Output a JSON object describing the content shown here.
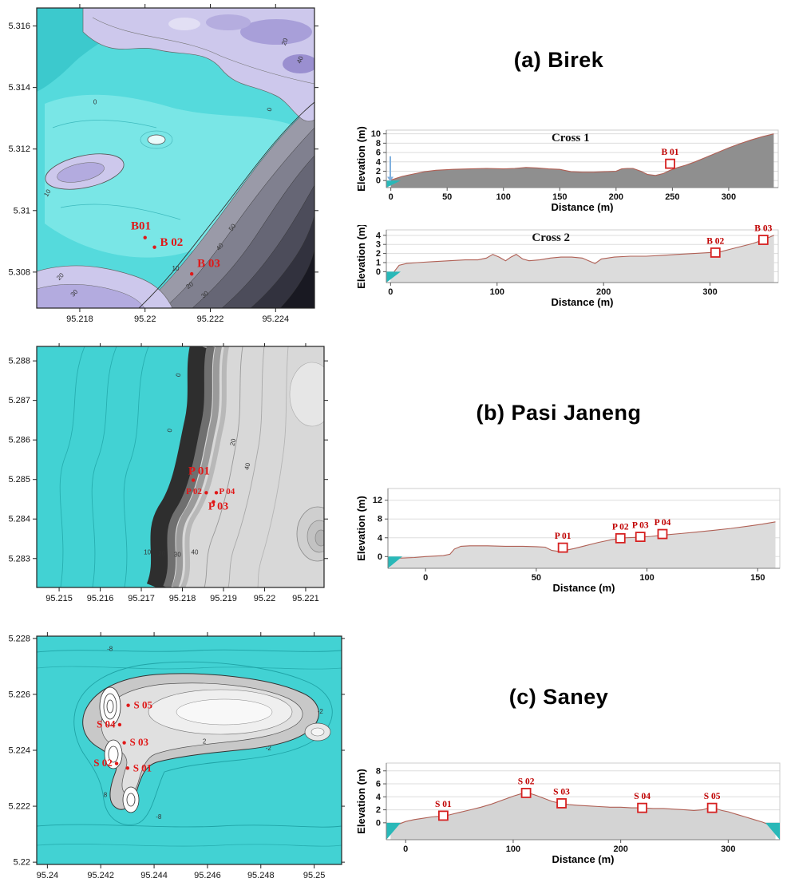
{
  "figure": {
    "panels": [
      {
        "id": "a",
        "title": "(a) Birek"
      },
      {
        "id": "b",
        "title": "(b) Pasi Janeng"
      },
      {
        "id": "c",
        "title": "(c) Saney"
      }
    ]
  },
  "maps": [
    {
      "id": "map-a",
      "y_ticks": [
        "5.316",
        "5.314",
        "5.312",
        "5.31",
        "5.308"
      ],
      "y_tick_f": [
        0.06,
        0.265,
        0.47,
        0.675,
        0.88
      ],
      "x_ticks": [
        "95.218",
        "95.22",
        "95.222",
        "95.224"
      ],
      "x_tick_f": [
        0.155,
        0.39,
        0.625,
        0.86
      ],
      "points": [
        {
          "label": "B01",
          "dot_f": [
            0.39,
            0.765
          ],
          "label_f": [
            0.375,
            0.738
          ],
          "size": 15,
          "anchor": "middle"
        },
        {
          "label": "B 02",
          "dot_f": [
            0.424,
            0.797
          ],
          "label_f": [
            0.444,
            0.792
          ],
          "size": 15,
          "anchor": "start"
        },
        {
          "label": "B 03",
          "dot_f": [
            0.558,
            0.886
          ],
          "label_f": [
            0.578,
            0.863
          ],
          "size": 15,
          "anchor": "start"
        }
      ],
      "contour_labels": [
        {
          "t": "0",
          "f": [
            0.21,
            0.32
          ]
        },
        {
          "t": "10",
          "f": [
            0.045,
            0.62
          ],
          "r": -60
        },
        {
          "t": "20",
          "f": [
            0.09,
            0.9
          ],
          "r": -45
        },
        {
          "t": "30",
          "f": [
            0.14,
            0.955
          ],
          "r": -45
        },
        {
          "t": "10",
          "f": [
            0.5,
            0.875
          ]
        },
        {
          "t": "20",
          "f": [
            0.555,
            0.93
          ],
          "r": -35
        },
        {
          "t": "30",
          "f": [
            0.61,
            0.96
          ],
          "r": -40
        },
        {
          "t": "40",
          "f": [
            0.665,
            0.8
          ],
          "r": -50
        },
        {
          "t": "50",
          "f": [
            0.71,
            0.735
          ],
          "r": -55
        },
        {
          "t": "0",
          "f": [
            0.845,
            0.34
          ],
          "r": -75
        },
        {
          "t": "20",
          "f": [
            0.9,
            0.115
          ],
          "r": -70
        },
        {
          "t": "40",
          "f": [
            0.955,
            0.175
          ],
          "r": -70
        }
      ]
    },
    {
      "id": "map-b",
      "y_ticks": [
        "5.288",
        "5.287",
        "5.286",
        "5.285",
        "5.284",
        "5.283"
      ],
      "y_tick_f": [
        0.06,
        0.224,
        0.388,
        0.552,
        0.716,
        0.88
      ],
      "x_ticks": [
        "95.215",
        "95.216",
        "95.217",
        "95.218",
        "95.219",
        "95.22",
        "95.221"
      ],
      "x_tick_f": [
        0.078,
        0.221,
        0.364,
        0.507,
        0.65,
        0.793,
        0.936
      ],
      "points": [
        {
          "label": "P 01",
          "dot_f": [
            0.545,
            0.555
          ],
          "label_f": [
            0.565,
            0.532
          ],
          "size": 15,
          "anchor": "middle"
        },
        {
          "label": "P 02",
          "dot_f": [
            0.59,
            0.607
          ],
          "label_f": [
            0.547,
            0.613
          ],
          "size": 11,
          "anchor": "middle"
        },
        {
          "label": "P 04",
          "dot_f": [
            0.625,
            0.607
          ],
          "label_f": [
            0.662,
            0.612
          ],
          "size": 11,
          "anchor": "middle"
        },
        {
          "label": "P 03",
          "dot_f": [
            0.615,
            0.645
          ],
          "label_f": [
            0.632,
            0.677
          ],
          "size": 14,
          "anchor": "middle"
        }
      ],
      "contour_labels": [
        {
          "t": "0",
          "f": [
            0.47,
            0.35
          ],
          "r": -80
        },
        {
          "t": "10",
          "f": [
            0.385,
            0.862
          ]
        },
        {
          "t": "20",
          "f": [
            0.435,
            0.87
          ]
        },
        {
          "t": "30",
          "f": [
            0.49,
            0.873
          ]
        },
        {
          "t": "40",
          "f": [
            0.55,
            0.862
          ]
        },
        {
          "t": "20",
          "f": [
            0.69,
            0.4
          ],
          "r": -75
        },
        {
          "t": "40",
          "f": [
            0.74,
            0.5
          ],
          "r": -75
        },
        {
          "t": "0",
          "f": [
            0.5,
            0.12
          ],
          "r": -80
        }
      ]
    },
    {
      "id": "map-c",
      "y_ticks": [
        "5.228",
        "5.226",
        "5.224",
        "5.222",
        "5.22"
      ],
      "y_tick_f": [
        0.01,
        0.255,
        0.5,
        0.745,
        0.99
      ],
      "x_ticks": [
        "95.24",
        "95.242",
        "95.244",
        "95.246",
        "95.248",
        "95.25"
      ],
      "x_tick_f": [
        0.035,
        0.21,
        0.385,
        0.56,
        0.735,
        0.91
      ],
      "points": [
        {
          "label": "S 05",
          "dot_f": [
            0.3,
            0.303
          ],
          "label_f": [
            0.318,
            0.316
          ],
          "size": 13,
          "anchor": "start"
        },
        {
          "label": "S 04",
          "dot_f": [
            0.272,
            0.388
          ],
          "label_f": [
            0.258,
            0.4
          ],
          "size": 13,
          "anchor": "end"
        },
        {
          "label": "S 03",
          "dot_f": [
            0.287,
            0.467
          ],
          "label_f": [
            0.305,
            0.479
          ],
          "size": 13,
          "anchor": "start"
        },
        {
          "label": "S 02",
          "dot_f": [
            0.262,
            0.558
          ],
          "label_f": [
            0.248,
            0.57
          ],
          "size": 13,
          "anchor": "end"
        },
        {
          "label": "S 01",
          "dot_f": [
            0.298,
            0.578
          ],
          "label_f": [
            0.316,
            0.592
          ],
          "size": 13,
          "anchor": "start"
        }
      ],
      "contour_labels": [
        {
          "t": "-8",
          "f": [
            0.24,
            0.065
          ]
        },
        {
          "t": "-8",
          "f": [
            0.4,
            0.8
          ]
        },
        {
          "t": "2",
          "f": [
            0.55,
            0.47
          ]
        },
        {
          "t": "-2",
          "f": [
            0.76,
            0.5
          ]
        },
        {
          "t": "8",
          "f": [
            0.225,
            0.705
          ]
        },
        {
          "t": "-2",
          "f": [
            0.93,
            0.34
          ]
        }
      ]
    }
  ],
  "chart_data": [
    {
      "id": "chart-a1",
      "type": "area",
      "inner_title": "Cross 1",
      "title_fx": 0.47,
      "xlabel": "Distance (m)",
      "ylabel": "Elevation (m)",
      "xlim": [
        -4,
        344
      ],
      "ylim": [
        -1.5,
        10.8
      ],
      "x_ticks": [
        0,
        50,
        100,
        150,
        200,
        250,
        300
      ],
      "y_ticks": [
        0,
        2,
        4,
        6,
        8,
        10
      ],
      "fill": "#8f8f8f",
      "line": "#b06055",
      "water": [
        "left"
      ],
      "arrow": true,
      "x": [
        0,
        5,
        10,
        20,
        30,
        40,
        55,
        70,
        85,
        100,
        110,
        120,
        130,
        140,
        150,
        160,
        170,
        180,
        190,
        200,
        205,
        210,
        215,
        222,
        228,
        235,
        242,
        248,
        255,
        262,
        270,
        280,
        290,
        300,
        310,
        320,
        330,
        340
      ],
      "y": [
        0.1,
        0.5,
        0.9,
        1.4,
        1.9,
        2.2,
        2.4,
        2.5,
        2.6,
        2.5,
        2.6,
        2.8,
        2.7,
        2.5,
        2.4,
        1.9,
        1.8,
        1.8,
        1.9,
        2.0,
        2.5,
        2.6,
        2.6,
        2.0,
        1.3,
        1.1,
        1.5,
        2.2,
        2.8,
        3.3,
        4.0,
        5.0,
        6.0,
        7.0,
        7.9,
        8.7,
        9.4,
        10.0
      ],
      "markers": [
        {
          "label": "B 01",
          "x": 248,
          "y": 3.6
        }
      ]
    },
    {
      "id": "chart-a2",
      "type": "area",
      "inner_title": "Cross 2",
      "title_fx": 0.42,
      "xlabel": "Distance (m)",
      "ylabel": "Elevation (m)",
      "xlim": [
        -4,
        364
      ],
      "ylim": [
        -1.2,
        4.6
      ],
      "x_ticks": [
        0,
        100,
        200,
        300
      ],
      "y_ticks": [
        0,
        1,
        2,
        3,
        4
      ],
      "fill": "#dcdcdc",
      "line": "#b06055",
      "water": [
        "left"
      ],
      "arrow": false,
      "x": [
        0,
        4,
        8,
        15,
        25,
        40,
        55,
        70,
        82,
        90,
        96,
        102,
        108,
        113,
        118,
        124,
        130,
        140,
        150,
        160,
        170,
        180,
        186,
        192,
        198,
        210,
        225,
        240,
        255,
        270,
        285,
        300,
        310,
        320,
        330,
        340,
        350,
        360
      ],
      "y": [
        -0.6,
        0.1,
        0.7,
        0.9,
        1.0,
        1.1,
        1.2,
        1.3,
        1.3,
        1.5,
        1.9,
        1.6,
        1.2,
        1.6,
        1.9,
        1.4,
        1.2,
        1.3,
        1.5,
        1.6,
        1.6,
        1.5,
        1.2,
        0.9,
        1.4,
        1.6,
        1.7,
        1.7,
        1.8,
        1.9,
        2.0,
        2.1,
        2.2,
        2.5,
        2.8,
        3.1,
        3.5,
        4.0
      ],
      "markers": [
        {
          "label": "B 02",
          "x": 305,
          "y": 2.1
        },
        {
          "label": "B 03",
          "x": 350,
          "y": 3.5
        }
      ]
    },
    {
      "id": "chart-b",
      "type": "area",
      "inner_title": "",
      "title_fx": 0.5,
      "xlabel": "Distance (m)",
      "ylabel": "Elevation (m)",
      "xlim": [
        -17,
        160
      ],
      "ylim": [
        -2.5,
        14.5
      ],
      "x_ticks": [
        0,
        50,
        100,
        150
      ],
      "y_ticks": [
        0,
        4,
        8,
        12
      ],
      "fill": "#dcdcdc",
      "line": "#b06055",
      "water": [
        "left"
      ],
      "arrow": false,
      "x": [
        -16,
        -10,
        -5,
        0,
        4,
        8,
        11,
        13,
        16,
        20,
        28,
        36,
        44,
        50,
        54,
        57,
        60,
        63,
        67,
        72,
        78,
        84,
        90,
        96,
        102,
        108,
        115,
        122,
        130,
        138,
        146,
        152,
        158
      ],
      "y": [
        -0.4,
        -0.3,
        -0.2,
        0,
        0.1,
        0.2,
        0.5,
        1.6,
        2.2,
        2.3,
        2.3,
        2.2,
        2.2,
        2.1,
        2.0,
        1.3,
        1.1,
        1.3,
        1.7,
        2.3,
        3.0,
        3.6,
        4.0,
        4.1,
        4.3,
        4.6,
        4.9,
        5.2,
        5.6,
        6.0,
        6.5,
        6.9,
        7.4
      ],
      "markers": [
        {
          "label": "P 01",
          "x": 62,
          "y": 1.9
        },
        {
          "label": "P 02",
          "x": 88,
          "y": 3.9
        },
        {
          "label": "P 03",
          "x": 97,
          "y": 4.2
        },
        {
          "label": "P 04",
          "x": 107,
          "y": 4.8
        }
      ]
    },
    {
      "id": "chart-c",
      "type": "area",
      "inner_title": "",
      "title_fx": 0.5,
      "xlabel": "Distance (m)",
      "ylabel": "Elevation (m)",
      "xlim": [
        -18,
        348
      ],
      "ylim": [
        -2.6,
        9.2
      ],
      "x_ticks": [
        0,
        100,
        200,
        300
      ],
      "y_ticks": [
        0,
        2,
        4,
        6,
        8
      ],
      "fill": "#d4d4d4",
      "line": "#b06055",
      "water": [
        "left",
        "right"
      ],
      "arrow": false,
      "x": [
        -14,
        -8,
        0,
        8,
        16,
        24,
        32,
        40,
        50,
        60,
        70,
        80,
        90,
        100,
        108,
        114,
        120,
        128,
        136,
        144,
        152,
        160,
        170,
        180,
        190,
        200,
        210,
        220,
        230,
        240,
        250,
        260,
        268,
        276,
        282,
        288,
        294,
        300,
        308,
        316,
        324,
        332,
        338,
        344
      ],
      "y": [
        -0.9,
        -0.3,
        0.2,
        0.5,
        0.7,
        0.9,
        1.0,
        1.2,
        1.6,
        2.0,
        2.4,
        2.9,
        3.5,
        4.1,
        4.5,
        4.6,
        4.3,
        3.8,
        3.3,
        3.0,
        2.8,
        2.7,
        2.6,
        2.5,
        2.4,
        2.4,
        2.3,
        2.3,
        2.2,
        2.2,
        2.1,
        2.0,
        1.9,
        2.0,
        2.3,
        2.2,
        1.9,
        1.7,
        1.3,
        0.9,
        0.5,
        0.1,
        -0.3,
        -0.8
      ],
      "markers": [
        {
          "label": "S 01",
          "x": 35,
          "y": 1.1
        },
        {
          "label": "S 02",
          "x": 112,
          "y": 4.6
        },
        {
          "label": "S 03",
          "x": 145,
          "y": 3.0
        },
        {
          "label": "S 04",
          "x": 220,
          "y": 2.3
        },
        {
          "label": "S 05",
          "x": 285,
          "y": 2.3
        }
      ]
    }
  ],
  "colors": {
    "sea_teal": "#42d2d3",
    "water_wedge": "#29b8b8",
    "profile_line": "#b06055",
    "marker_red": "#d62020",
    "label_red": "#e01818"
  }
}
